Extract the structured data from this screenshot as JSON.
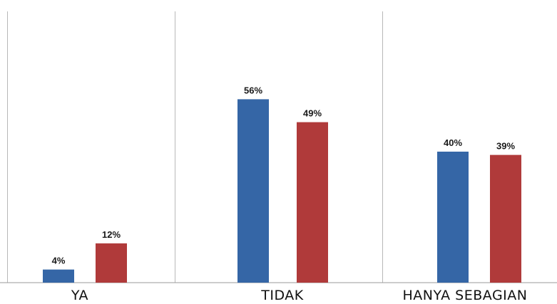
{
  "chart_data": {
    "type": "bar",
    "categories": [
      "YA",
      "TIDAK",
      "HANYA SEBAGIAN"
    ],
    "series": [
      {
        "color": "#3566A6",
        "values": [
          4,
          56,
          40
        ],
        "labels": [
          "4%",
          "56%",
          "40%"
        ]
      },
      {
        "color": "#B03A3A",
        "values": [
          12,
          49,
          39
        ],
        "labels": [
          "12%",
          "49%",
          "39%"
        ]
      }
    ],
    "unit": "%",
    "title": "",
    "xlabel": "",
    "ylabel": "",
    "ylim": [
      0,
      69
    ],
    "grid": "vertical category separators",
    "legend": "none"
  }
}
